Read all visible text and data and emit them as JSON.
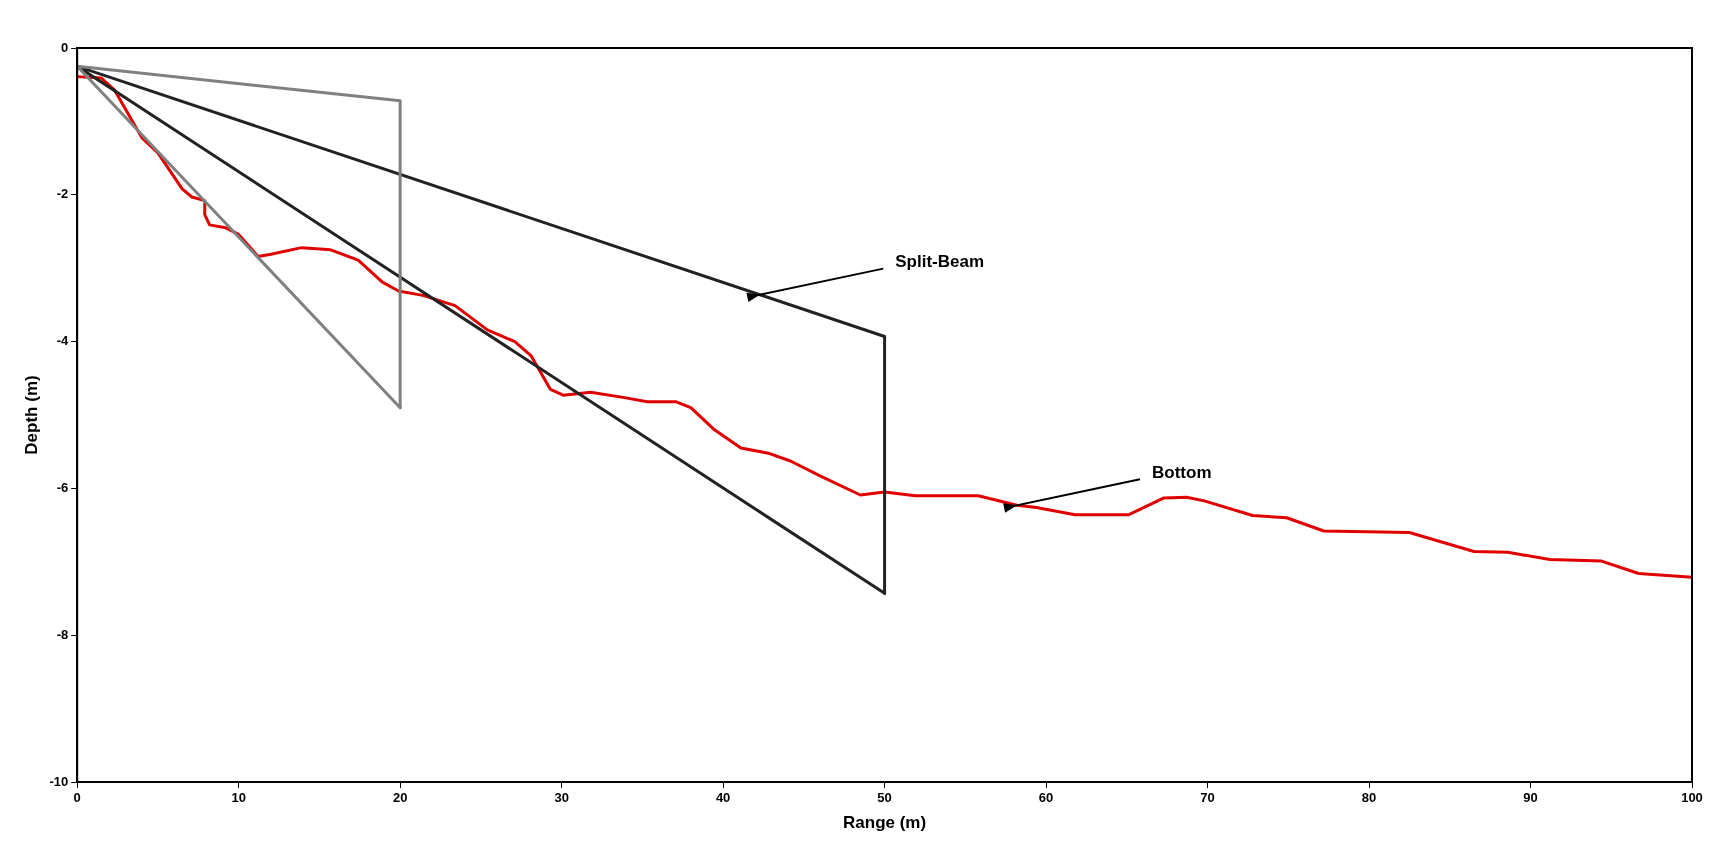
{
  "chart_data": {
    "type": "line",
    "xlabel": "Range (m)",
    "ylabel": "Depth (m)",
    "xlim": [
      0,
      100
    ],
    "xticks": [
      0,
      10,
      20,
      30,
      40,
      50,
      60,
      70,
      80,
      90,
      100
    ],
    "ylim": [
      -10,
      0
    ],
    "yticks": [
      0,
      -2,
      -4,
      -6,
      -8,
      -10
    ],
    "grid": false,
    "legend": false,
    "marker": "none",
    "line_style": "solid",
    "series": [
      {
        "color": "#808080",
        "x": [
          0,
          20,
          20
        ],
        "values": [
          -0.25,
          -0.72,
          -4.9
        ]
      },
      {
        "color": "#808080",
        "x": [
          0,
          20
        ],
        "values": [
          -0.25,
          -4.9
        ]
      },
      {
        "color": "#222222",
        "x": [
          0,
          50,
          50
        ],
        "values": [
          -0.25,
          -3.93,
          -7.43
        ]
      },
      {
        "color": "#222222",
        "x": [
          0,
          50
        ],
        "values": [
          -0.25,
          -7.43
        ]
      },
      {
        "color": "#e00000",
        "x": [
          0,
          1.5,
          2.3,
          4,
          5,
          6.5,
          7.1,
          7.9,
          7.9,
          8.2,
          9.2,
          10,
          11.2,
          12,
          13.9,
          15.7,
          17.4,
          18.9,
          19.9,
          21.4,
          23.4,
          25.4,
          27.1,
          28.1,
          29.3,
          30.1,
          31.8,
          33.8,
          35.3,
          37.1,
          38,
          39.4,
          41.1,
          42.8,
          44.2,
          46.1,
          48.5,
          50,
          51.9,
          55.8,
          58.2,
          59.4,
          61.8,
          65.1,
          67.3,
          68.7,
          69.8,
          72.8,
          74.9,
          77.2,
          82.5,
          86.5,
          88.6,
          91.2,
          94.4,
          96.7,
          100
        ],
        "values": [
          -0.39,
          -0.41,
          -0.57,
          -1.22,
          -1.43,
          -1.92,
          -2.03,
          -2.08,
          -2.27,
          -2.41,
          -2.45,
          -2.54,
          -2.84,
          -2.81,
          -2.72,
          -2.75,
          -2.89,
          -3.19,
          -3.31,
          -3.37,
          -3.51,
          -3.84,
          -4.0,
          -4.19,
          -4.65,
          -4.73,
          -4.69,
          -4.76,
          -4.82,
          -4.82,
          -4.9,
          -5.19,
          -5.45,
          -5.52,
          -5.63,
          -5.84,
          -6.09,
          -6.05,
          -6.1,
          -6.1,
          -6.23,
          -6.26,
          -6.36,
          -6.36,
          -6.13,
          -6.12,
          -6.17,
          -6.37,
          -6.4,
          -6.58,
          -6.6,
          -6.86,
          -6.87,
          -6.97,
          -6.99,
          -7.16,
          -7.21
        ]
      }
    ],
    "annotations": [
      {
        "text": "Split-Beam",
        "x": 42.3,
        "y": -3.36
      },
      {
        "text": "Bottom",
        "x": 58.2,
        "y": -6.23
      }
    ]
  }
}
